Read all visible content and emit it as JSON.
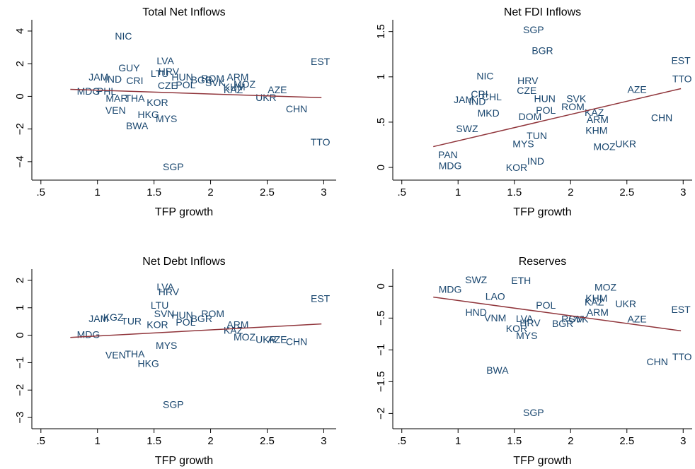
{
  "chart_data": [
    {
      "type": "scatter",
      "title": "Total Net Inflows",
      "x_label": "TFP growth",
      "color": "#1a476f",
      "fit_color": "#90353b",
      "xlim": [
        0.42,
        3.11
      ],
      "ylim": [
        -5.13,
        4.69
      ],
      "xticks": [
        {
          "value": 0.5,
          "label": ".5"
        },
        1,
        1.5,
        2,
        2.5,
        3
      ],
      "yticks": [
        {
          "value": -4,
          "label": "−4"
        },
        {
          "value": -2,
          "label": "−2"
        },
        0,
        2,
        4
      ],
      "labels": [
        "NIC",
        "GUY",
        "LVA",
        "LTU",
        "HRV",
        "HUN",
        "ROM",
        "BGR",
        "SVK",
        "ARM",
        "MOZ",
        "KHM",
        "KAZ",
        "AZE",
        "UKR",
        "EST",
        "CHN",
        "TTO",
        "SGP",
        "JAM",
        "MDG",
        "VEN",
        "HKG",
        "MYS",
        "BWA",
        "KOR",
        "POL",
        "CZE",
        "CRI",
        "IND",
        "PHL",
        "MAR",
        "THA"
      ],
      "x": [
        1.23,
        1.28,
        1.6,
        1.55,
        1.63,
        1.75,
        2.02,
        1.92,
        2.04,
        2.24,
        2.3,
        2.21,
        2.2,
        2.59,
        2.49,
        2.97,
        2.76,
        2.97,
        1.67,
        1.01,
        0.92,
        1.16,
        1.45,
        1.61,
        1.35,
        1.53,
        1.78,
        1.62,
        1.33,
        1.14,
        1.08,
        1.17,
        1.33
      ],
      "y": [
        3.64,
        1.69,
        2.12,
        1.34,
        1.47,
        1.13,
        1.04,
        0.95,
        0.78,
        1.13,
        0.69,
        0.52,
        0.35,
        0.35,
        -0.13,
        2.08,
        -0.82,
        -2.86,
        -4.37,
        1.13,
        0.26,
        -0.91,
        -1.17,
        -1.43,
        -1.86,
        -0.43,
        0.65,
        0.61,
        0.91,
        1.0,
        0.26,
        -0.17,
        -0.17
      ],
      "fit": {
        "x": [
          0.76,
          2.98
        ],
        "y": [
          0.43,
          -0.08
        ]
      }
    },
    {
      "type": "scatter",
      "title": "Net FDI Inflows",
      "x_label": "TFP growth",
      "color": "#1a476f",
      "fit_color": "#90353b",
      "xlim": [
        0.42,
        3.08
      ],
      "ylim": [
        -0.14,
        1.63
      ],
      "xticks": [
        {
          "value": 0.5,
          "label": ".5"
        },
        1,
        1.5,
        2,
        2.5,
        3
      ],
      "yticks": [
        0,
        {
          "value": 0.5,
          "label": ".5"
        },
        1,
        1.5
      ],
      "labels": [
        "SGP",
        "BGR",
        "EST",
        "TTO",
        "NIC",
        "HRV",
        "CZE",
        "CHL",
        "CRI",
        "JAM",
        "IND",
        "HUN",
        "SVK",
        "ROM",
        "AZE",
        "KAZ",
        "ARM",
        "CHN",
        "KHM",
        "MOZ",
        "UKR",
        "POL",
        "DOM",
        "TUN",
        "MKD",
        "MYS",
        "KOR",
        "MDG",
        "IND",
        "PAN",
        "SWZ"
      ],
      "x": [
        1.67,
        1.75,
        2.98,
        2.99,
        1.24,
        1.62,
        1.61,
        1.3,
        1.19,
        1.05,
        1.17,
        1.77,
        2.05,
        2.02,
        2.59,
        2.21,
        2.24,
        2.81,
        2.23,
        2.3,
        2.49,
        1.78,
        1.64,
        1.7,
        1.27,
        1.58,
        1.52,
        0.93,
        1.69,
        0.91,
        1.08
      ],
      "y": [
        1.51,
        1.28,
        1.17,
        0.97,
        1.0,
        0.95,
        0.84,
        0.77,
        0.8,
        0.74,
        0.72,
        0.75,
        0.75,
        0.66,
        0.85,
        0.6,
        0.52,
        0.54,
        0.4,
        0.22,
        0.25,
        0.62,
        0.55,
        0.34,
        0.59,
        0.25,
        -0.01,
        0.01,
        0.06,
        0.13,
        0.42
      ],
      "fit": {
        "x": [
          0.78,
          2.98
        ],
        "y": [
          0.23,
          0.87
        ]
      }
    },
    {
      "type": "scatter",
      "title": "Net Debt Inflows",
      "x_label": "TFP growth",
      "color": "#1a476f",
      "fit_color": "#90353b",
      "xlim": [
        0.42,
        3.11
      ],
      "ylim": [
        -3.41,
        2.41
      ],
      "xticks": [
        {
          "value": 0.5,
          "label": ".5"
        },
        1,
        1.5,
        2,
        2.5,
        3
      ],
      "yticks": [
        {
          "value": -3,
          "label": "−3"
        },
        {
          "value": -2,
          "label": "−2"
        },
        {
          "value": -1,
          "label": "−1"
        },
        0,
        1,
        2
      ],
      "labels": [
        "LVA",
        "HRV",
        "LTU",
        "SVN",
        "HUN",
        "ROM",
        "BGR",
        "POL",
        "EST",
        "ARM",
        "KAZ",
        "MOZ",
        "UKR",
        "AZE",
        "CHN",
        "KGZ",
        "JAM",
        "TUR",
        "KOR",
        "MDG",
        "VEN",
        "HKG",
        "THA",
        "MYS",
        "SGP"
      ],
      "x": [
        1.6,
        1.63,
        1.55,
        1.59,
        1.75,
        2.02,
        1.92,
        1.78,
        2.97,
        2.24,
        2.2,
        2.3,
        2.49,
        2.59,
        2.76,
        1.14,
        1.01,
        1.3,
        1.53,
        0.92,
        1.16,
        1.45,
        1.33,
        1.61,
        1.67
      ],
      "y": [
        1.73,
        1.55,
        1.06,
        0.75,
        0.7,
        0.75,
        0.57,
        0.44,
        1.31,
        0.36,
        0.15,
        -0.1,
        -0.18,
        -0.18,
        -0.26,
        0.62,
        0.57,
        0.49,
        0.36,
        0,
        -0.75,
        -1.06,
        -0.72,
        -0.41,
        -2.55
      ],
      "fit": {
        "x": [
          0.76,
          2.98
        ],
        "y": [
          -0.08,
          0.41
        ]
      }
    },
    {
      "type": "scatter",
      "title": "Reserves",
      "x_label": "TFP growth",
      "color": "#1a476f",
      "fit_color": "#90353b",
      "xlim": [
        0.42,
        3.08
      ],
      "ylim": [
        -2.24,
        0.27
      ],
      "xticks": [
        {
          "value": 0.5,
          "label": ".5"
        },
        1,
        1.5,
        2,
        2.5,
        3
      ],
      "yticks": [
        {
          "value": -2,
          "label": "−2"
        },
        {
          "value": -1.5,
          "label": "−1.5"
        },
        {
          "value": -1,
          "label": "−1"
        },
        {
          "value": -0.5,
          "label": "−.5"
        },
        0
      ],
      "labels": [
        "SWZ",
        "ETH",
        "MDG",
        "MOZ",
        "KHM",
        "KAZ",
        "UKR",
        "EST",
        "ARM",
        "AZE",
        "POL",
        "LVA",
        "HRV",
        "BGR",
        "ROM",
        "SVK",
        "KOR",
        "MYS",
        "VNM",
        "BWA",
        "CHN",
        "TTO",
        "SGP",
        "HND",
        "LAO"
      ],
      "x": [
        1.16,
        1.56,
        0.93,
        2.31,
        2.23,
        2.21,
        2.49,
        2.98,
        2.24,
        2.59,
        1.78,
        1.59,
        1.64,
        1.93,
        2.02,
        2.07,
        1.52,
        1.61,
        1.33,
        1.35,
        2.77,
        2.99,
        1.67,
        1.16,
        1.33
      ],
      "y": [
        0.09,
        0.08,
        -0.06,
        -0.03,
        -0.2,
        -0.26,
        -0.29,
        -0.38,
        -0.42,
        -0.53,
        -0.31,
        -0.52,
        -0.59,
        -0.6,
        -0.53,
        -0.53,
        -0.68,
        -0.79,
        -0.51,
        -1.33,
        -1.2,
        -1.12,
        -2.0,
        -0.42,
        -0.17
      ],
      "fit": {
        "x": [
          0.78,
          2.98
        ],
        "y": [
          -0.17,
          -0.7
        ]
      }
    }
  ]
}
